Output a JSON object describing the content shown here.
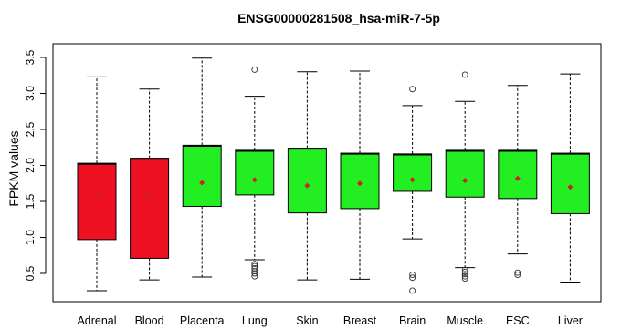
{
  "chart_data": {
    "type": "boxplot",
    "title": "ENSG00000281508_hsa-miR-7-5p",
    "xlabel": "",
    "ylabel": "FPKM values",
    "ylim": [
      0.2,
      3.6
    ],
    "yticks": [
      "0.5",
      "1.0",
      "1.5",
      "2.0",
      "2.5",
      "3.0",
      "3.5"
    ],
    "grid": false,
    "legend": "none",
    "colors": {
      "red": "#ee1122",
      "green": "#22ee22",
      "mean": "#cc2222"
    },
    "categories": [
      "Adrenal",
      "Blood",
      "Placenta",
      "Lung",
      "Skin",
      "Breast",
      "Brain",
      "Muscle",
      "ESC",
      "Liver"
    ],
    "boxes": [
      {
        "category": "Adrenal",
        "color": "red",
        "whisker_low": 0.26,
        "q1": 0.97,
        "median": 2.02,
        "q3": 2.03,
        "whisker_high": 3.23,
        "mean": 1.62,
        "outliers": []
      },
      {
        "category": "Blood",
        "color": "red",
        "whisker_low": 0.41,
        "q1": 0.71,
        "median": 2.09,
        "q3": 2.1,
        "whisker_high": 3.06,
        "mean": 1.59,
        "outliers": []
      },
      {
        "category": "Placenta",
        "color": "green",
        "whisker_low": 0.45,
        "q1": 1.43,
        "median": 2.27,
        "q3": 2.28,
        "whisker_high": 3.49,
        "mean": 1.76,
        "outliers": []
      },
      {
        "category": "Lung",
        "color": "green",
        "whisker_low": 0.69,
        "q1": 1.59,
        "median": 2.2,
        "q3": 2.21,
        "whisker_high": 2.96,
        "mean": 1.8,
        "outliers": [
          0.46,
          0.5,
          0.53,
          0.57,
          0.6,
          0.63,
          3.33
        ]
      },
      {
        "category": "Skin",
        "color": "green",
        "whisker_low": 0.41,
        "q1": 1.34,
        "median": 2.23,
        "q3": 2.24,
        "whisker_high": 3.3,
        "mean": 1.72,
        "outliers": []
      },
      {
        "category": "Breast",
        "color": "green",
        "whisker_low": 0.42,
        "q1": 1.4,
        "median": 2.16,
        "q3": 2.17,
        "whisker_high": 3.31,
        "mean": 1.75,
        "outliers": []
      },
      {
        "category": "Brain",
        "color": "green",
        "whisker_low": 0.98,
        "q1": 1.64,
        "median": 2.15,
        "q3": 2.16,
        "whisker_high": 2.83,
        "mean": 1.8,
        "outliers": [
          0.44,
          0.48,
          0.26,
          3.06
        ]
      },
      {
        "category": "Muscle",
        "color": "green",
        "whisker_low": 0.58,
        "q1": 1.56,
        "median": 2.2,
        "q3": 2.21,
        "whisker_high": 2.89,
        "mean": 1.79,
        "outliers": [
          0.43,
          0.46,
          0.49,
          0.52,
          0.55,
          3.26
        ]
      },
      {
        "category": "ESC",
        "color": "green",
        "whisker_low": 0.77,
        "q1": 1.54,
        "median": 2.2,
        "q3": 2.21,
        "whisker_high": 3.11,
        "mean": 1.82,
        "outliers": [
          0.48,
          0.51
        ]
      },
      {
        "category": "Liver",
        "color": "green",
        "whisker_low": 0.38,
        "q1": 1.33,
        "median": 2.16,
        "q3": 2.17,
        "whisker_high": 3.27,
        "mean": 1.7,
        "outliers": []
      }
    ]
  }
}
